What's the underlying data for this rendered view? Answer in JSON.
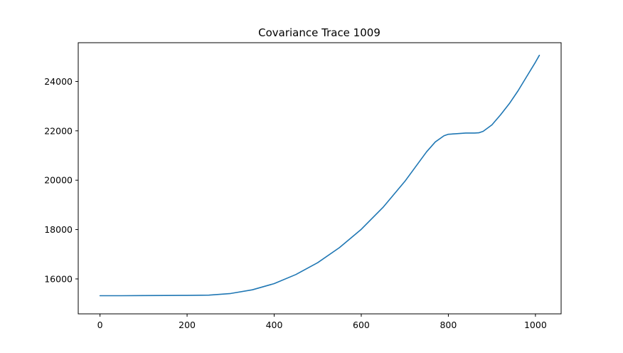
{
  "chart_data": {
    "type": "line",
    "title": "Covariance Trace 1009",
    "xlabel": "",
    "ylabel": "",
    "xlim": [
      -50,
      1059
    ],
    "ylim": [
      14585,
      25570
    ],
    "xticks": [
      0,
      200,
      400,
      600,
      800,
      1000
    ],
    "yticks": [
      16000,
      18000,
      20000,
      22000,
      24000
    ],
    "grid": false,
    "legend": "none",
    "series": [
      {
        "color": "#1f77b4",
        "x": [
          0,
          50,
          100,
          150,
          200,
          250,
          300,
          350,
          400,
          450,
          500,
          550,
          600,
          650,
          700,
          750,
          770,
          790,
          800,
          820,
          840,
          860,
          870,
          880,
          900,
          920,
          940,
          960,
          980,
          1000,
          1009
        ],
        "y": [
          15320,
          15320,
          15325,
          15328,
          15333,
          15345,
          15410,
          15560,
          15810,
          16180,
          16660,
          17270,
          18010,
          18900,
          19950,
          21150,
          21550,
          21800,
          21860,
          21885,
          21910,
          21910,
          21920,
          21980,
          22240,
          22650,
          23100,
          23620,
          24200,
          24780,
          25060
        ]
      }
    ]
  }
}
